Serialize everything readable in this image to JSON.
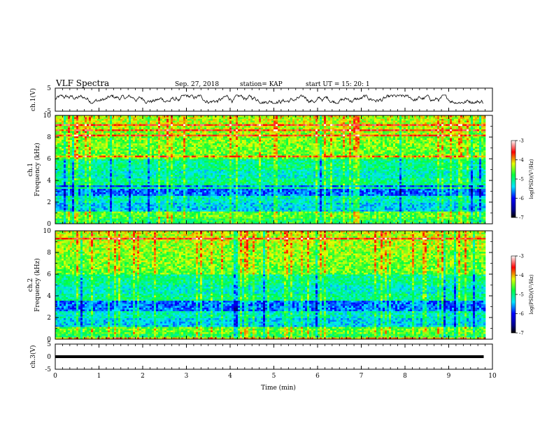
{
  "header": {
    "title": "VLF Spectra",
    "date": "Sep. 27, 2018",
    "station": "station= KAP",
    "start_ut": "start  UT  =   15: 20: 1"
  },
  "chart_data": [
    {
      "type": "line",
      "panel": "ch1-waveform",
      "ylabel": "ch.1(V)",
      "ylim": [
        -5,
        5
      ],
      "yticks": [
        "5",
        "-5"
      ],
      "xlim": [
        0,
        10
      ],
      "data_extent_min": [
        0,
        9.8
      ],
      "description_values": "noisy waveform fluctuating roughly between -1.5 and 2 V"
    },
    {
      "type": "heatmap",
      "panel": "ch1-spectrogram",
      "ylabel_top": "ch.1",
      "ylabel": "Frequency  (kHz)",
      "ylim": [
        0,
        10
      ],
      "yticks": [
        "0",
        "2",
        "4",
        "6",
        "8",
        "10"
      ],
      "xlim": [
        0,
        10
      ],
      "colorbar": {
        "label": "log(PSD)(V²/Hz)",
        "range": [
          -7,
          -3
        ],
        "ticks": [
          "-3",
          "-4",
          "-5",
          "-6",
          "-7"
        ]
      }
    },
    {
      "type": "heatmap",
      "panel": "ch2-spectrogram",
      "ylabel_top": "ch.2",
      "ylabel": "Frequency  (kHz)",
      "ylim": [
        0,
        10
      ],
      "yticks": [
        "0",
        "2",
        "4",
        "6",
        "8",
        "10"
      ],
      "xlim": [
        0,
        10
      ],
      "colorbar": {
        "label": "log(PSD)(V²/Hz)",
        "range": [
          -7,
          -3
        ],
        "ticks": [
          "-3",
          "-4",
          "-5",
          "-6",
          "-7"
        ]
      }
    },
    {
      "type": "line",
      "panel": "ch3-waveform",
      "ylabel": "ch.3(V)",
      "ylim": [
        -5,
        5
      ],
      "yticks": [
        "5",
        "0",
        "-5"
      ],
      "xlim": [
        0,
        10
      ],
      "constant_value": 0,
      "xlabel": "Time  (min)",
      "xticks": [
        "0",
        "1",
        "2",
        "3",
        "4",
        "5",
        "6",
        "7",
        "8",
        "9",
        "10"
      ]
    }
  ]
}
